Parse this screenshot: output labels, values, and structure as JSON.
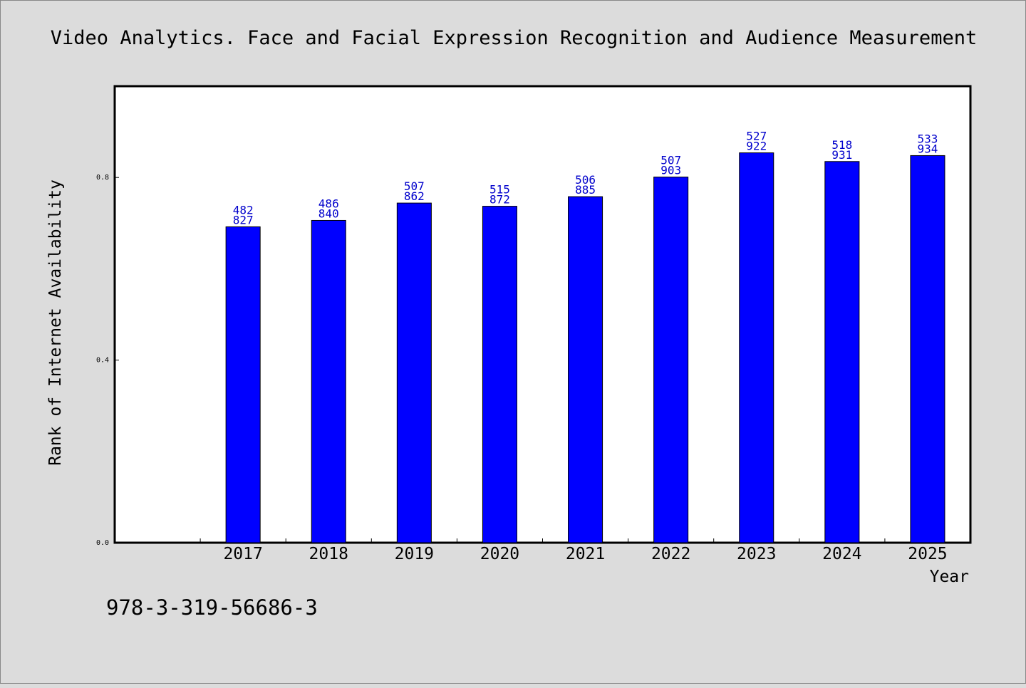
{
  "chart_data": {
    "type": "bar",
    "title": "Video Analytics. Face and Facial Expression Recognition and Audience Measurement",
    "xlabel": "Year",
    "ylabel": "Rank of Internet Availability",
    "categories": [
      "2017",
      "2018",
      "2019",
      "2020",
      "2021",
      "2022",
      "2023",
      "2024",
      "2025"
    ],
    "series": [
      {
        "values": [
          0.692,
          0.706,
          0.744,
          0.737,
          0.758,
          0.801,
          0.854,
          0.835,
          0.848
        ],
        "label_line1": [
          "482",
          "486",
          "507",
          "515",
          "506",
          "507",
          "527",
          "518",
          "533"
        ],
        "label_line2": [
          "827",
          "840",
          "862",
          "872",
          "885",
          "903",
          "922",
          "931",
          "934"
        ],
        "color": "#0000ff"
      }
    ],
    "yticks": [
      {
        "value": 0.0,
        "label": "0.0"
      },
      {
        "value": 0.4,
        "label": "0.4"
      },
      {
        "value": 0.8,
        "label": "0.8"
      }
    ],
    "ylim": [
      0.0,
      1.0
    ],
    "x_slots": 10,
    "grid": false,
    "legend": "none",
    "colors": {
      "background": "#dcdcdc",
      "plot_area": "#ffffff",
      "bar_fill": "#0000ff",
      "bar_label": "#0000cc",
      "axis": "#000000"
    }
  },
  "footer": {
    "code": "978-3-319-56686-3"
  }
}
